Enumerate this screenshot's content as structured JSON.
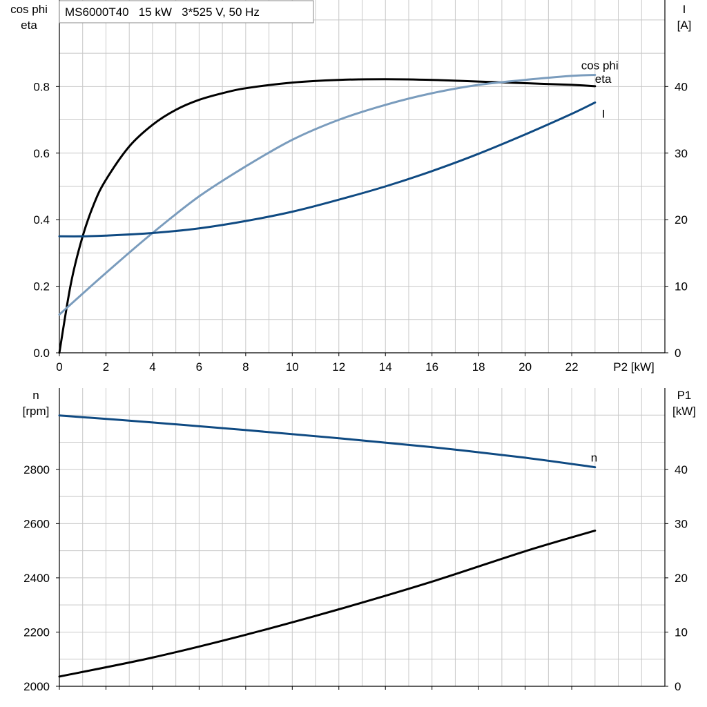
{
  "title": "MS6000T40   15 kW   3*525 V, 50 Hz",
  "colors": {
    "eta": "#000000",
    "cosphi": "#7a9cbd",
    "current": "#0f4a82",
    "speed": "#0f4a82",
    "power": "#000000",
    "grid": "#c8c8c8"
  },
  "chart_data": [
    {
      "type": "line",
      "xlabel": "P2 [kW]",
      "ylabel_left": [
        "cos phi",
        "eta"
      ],
      "ylabel_right": [
        "I",
        "[A]"
      ],
      "xlim": [
        0,
        26
      ],
      "ylim_left": [
        0,
        1.06
      ],
      "ylim_right": [
        0,
        53
      ],
      "xticks": [
        0,
        2,
        4,
        6,
        8,
        10,
        12,
        14,
        16,
        18,
        20,
        22
      ],
      "yticks_left": [
        0.0,
        0.2,
        0.4,
        0.6,
        0.8
      ],
      "ytick_labels_left": [
        "0.0",
        "0.2",
        "0.4",
        "0.6",
        "0.8"
      ],
      "yticks_right": [
        0,
        10,
        20,
        30,
        40
      ],
      "grid": true,
      "series": [
        {
          "name": "eta",
          "axis": "left",
          "color_key": "eta",
          "x": [
            0,
            0.5,
            1,
            1.5,
            2,
            3,
            4,
            5,
            6,
            7,
            8,
            10,
            12,
            14,
            16,
            18,
            20,
            22,
            23
          ],
          "y": [
            0.0,
            0.21,
            0.35,
            0.45,
            0.52,
            0.62,
            0.685,
            0.73,
            0.76,
            0.78,
            0.795,
            0.812,
            0.82,
            0.822,
            0.82,
            0.815,
            0.81,
            0.805,
            0.801
          ]
        },
        {
          "name": "cos phi",
          "axis": "left",
          "color_key": "cosphi",
          "x": [
            0,
            2,
            4,
            6,
            8,
            10,
            12,
            14,
            16,
            18,
            20,
            22,
            23
          ],
          "y": [
            0.115,
            0.24,
            0.36,
            0.47,
            0.56,
            0.64,
            0.7,
            0.745,
            0.78,
            0.805,
            0.82,
            0.832,
            0.835
          ]
        },
        {
          "name": "I",
          "axis": "right",
          "color_key": "current",
          "x": [
            0,
            1,
            2,
            4,
            6,
            8,
            10,
            12,
            14,
            16,
            18,
            20,
            22,
            23
          ],
          "y": [
            17.5,
            17.5,
            17.6,
            18.0,
            18.7,
            19.8,
            21.2,
            23.0,
            25.0,
            27.3,
            29.9,
            32.8,
            35.9,
            37.6
          ]
        }
      ],
      "labels": [
        {
          "text": "cos phi",
          "series": "cos phi"
        },
        {
          "text": "eta",
          "series": "eta"
        },
        {
          "text": "I",
          "series": "I"
        }
      ]
    },
    {
      "type": "line",
      "ylabel_left": [
        "n",
        "[rpm]"
      ],
      "ylabel_right": [
        "P1",
        "[kW]"
      ],
      "xlim": [
        0,
        26
      ],
      "ylim_left": [
        2000,
        3100
      ],
      "ylim_right": [
        0,
        55
      ],
      "xticks": [
        0,
        2,
        4,
        6,
        8,
        10,
        12,
        14,
        16,
        18,
        20,
        22
      ],
      "yticks_left": [
        2000,
        2200,
        2400,
        2600,
        2800
      ],
      "yticks_right": [
        0,
        10,
        20,
        30,
        40
      ],
      "grid": true,
      "series": [
        {
          "name": "n",
          "axis": "left",
          "color_key": "speed",
          "x": [
            0,
            4,
            8,
            12,
            16,
            20,
            23
          ],
          "y": [
            2999,
            2973,
            2945,
            2915,
            2882,
            2843,
            2808
          ]
        },
        {
          "name": "P1",
          "axis": "right",
          "color_key": "power",
          "x": [
            0,
            4,
            8,
            12,
            16,
            20,
            23
          ],
          "y": [
            1.8,
            5.3,
            9.5,
            14.2,
            19.3,
            24.9,
            28.7
          ]
        }
      ],
      "labels": [
        {
          "text": "n",
          "series": "n"
        }
      ]
    }
  ]
}
